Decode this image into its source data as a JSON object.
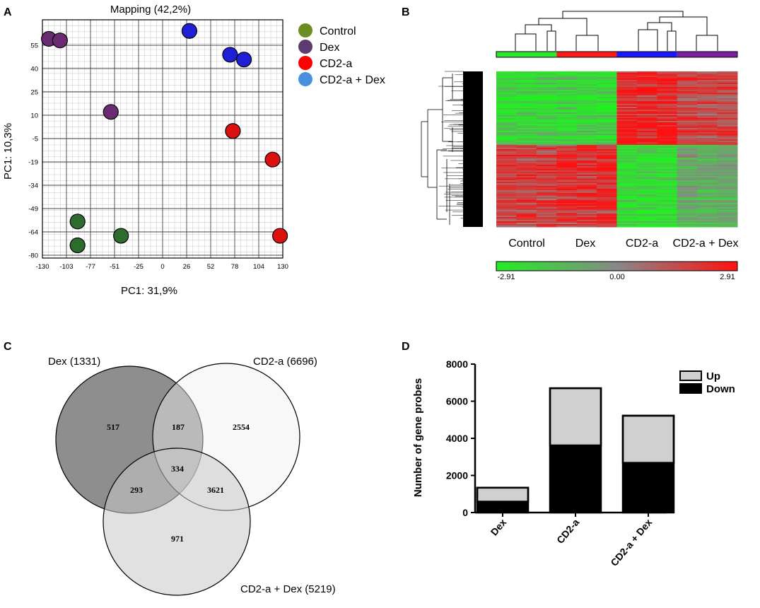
{
  "figure": {
    "panel_letters": [
      "A",
      "B",
      "C",
      "D"
    ]
  },
  "chart_data": [
    {
      "type": "scatter",
      "panel": "A",
      "title": "Mapping (42,2%)",
      "xlabel": "PC1: 31,9%",
      "ylabel": "PC1: 10,3%",
      "xlim": [
        -130,
        130
      ],
      "ylim": [
        -80,
        70
      ],
      "x_ticks": [
        "-130",
        "-103",
        "-77",
        "-51",
        "-25",
        "0",
        "26",
        "52",
        "78",
        "104",
        "130"
      ],
      "y_ticks": [
        "55",
        "40",
        "25",
        "10",
        "-5",
        "-19",
        "-34",
        "-49",
        "-64",
        "-80"
      ],
      "grid": true,
      "series": [
        {
          "name": "Control",
          "color": "#2e6b2e",
          "legend_color": "#6b8e23",
          "points": [
            [
              -92,
              -57
            ],
            [
              -92,
              -72
            ],
            [
              -45,
              -66
            ]
          ]
        },
        {
          "name": "Dex",
          "color": "#6a2b73",
          "legend_color": "#5b3b70",
          "points": [
            [
              -123,
              58
            ],
            [
              -111,
              57
            ],
            [
              -56,
              12
            ]
          ]
        },
        {
          "name": "CD2-a",
          "color": "#dd1010",
          "legend_color": "#ff0000",
          "points": [
            [
              76,
              0
            ],
            [
              119,
              -18
            ],
            [
              127,
              -66
            ]
          ]
        },
        {
          "name": "CD2-a + Dex",
          "color": "#1f1fd6",
          "legend_color": "#4a8fdb",
          "points": [
            [
              29,
              63
            ],
            [
              73,
              48
            ],
            [
              88,
              45
            ]
          ]
        }
      ],
      "legend": {
        "position": "right",
        "labels": [
          "Control",
          "Dex",
          "CD2-a",
          "CD2-a + Dex"
        ]
      }
    },
    {
      "type": "heatmap",
      "panel": "B",
      "groups": [
        "Control",
        "Dex",
        "CD2-a",
        "CD2-a + Dex"
      ],
      "group_colors": [
        "#2ee82e",
        "#ff1a1a",
        "#1a1aff",
        "#7a1fa2"
      ],
      "colorbar": {
        "min": "-2.91",
        "mid": "0.00",
        "max": "2.91",
        "low_color": "#22ee22",
        "mid_color": "#888888",
        "high_color": "#ff1010"
      },
      "block_pattern": [
        {
          "band": "upper",
          "values": [
            -1,
            -1,
            1,
            0.6
          ]
        },
        {
          "band": "lower",
          "values": [
            0.7,
            0.9,
            -1,
            -0.4
          ]
        }
      ]
    },
    {
      "type": "venn",
      "panel": "C",
      "sets": [
        {
          "label": "Dex (1331)",
          "color": "#888888"
        },
        {
          "label": "CD2-a (6696)",
          "color": "#f0f0f0"
        },
        {
          "label": "CD2-a + Dex (5219)",
          "color": "#cccccc"
        }
      ],
      "regions": {
        "dex_only": "517",
        "dex_cd2a": "187",
        "cd2a_only": "2554",
        "all_three": "334",
        "dex_cd2adex": "293",
        "cd2a_cd2adex": "3621",
        "cd2adex_only": "971"
      }
    },
    {
      "type": "bar",
      "panel": "D",
      "stacked": true,
      "categories": [
        "Dex",
        "CD2-a",
        "CD2-a + Dex"
      ],
      "ylabel": "Number of gene probes",
      "ylim": [
        0,
        8000
      ],
      "y_ticks": [
        "0",
        "2000",
        "4000",
        "6000",
        "8000"
      ],
      "series": [
        {
          "name": "Down",
          "color": "#000000",
          "values": [
            590,
            3620,
            2680
          ]
        },
        {
          "name": "Up",
          "color": "#d0d0d0",
          "values": [
            750,
            3080,
            2540
          ]
        }
      ],
      "legend": {
        "position": "top-right",
        "labels": [
          "Up",
          "Down"
        ]
      }
    }
  ]
}
